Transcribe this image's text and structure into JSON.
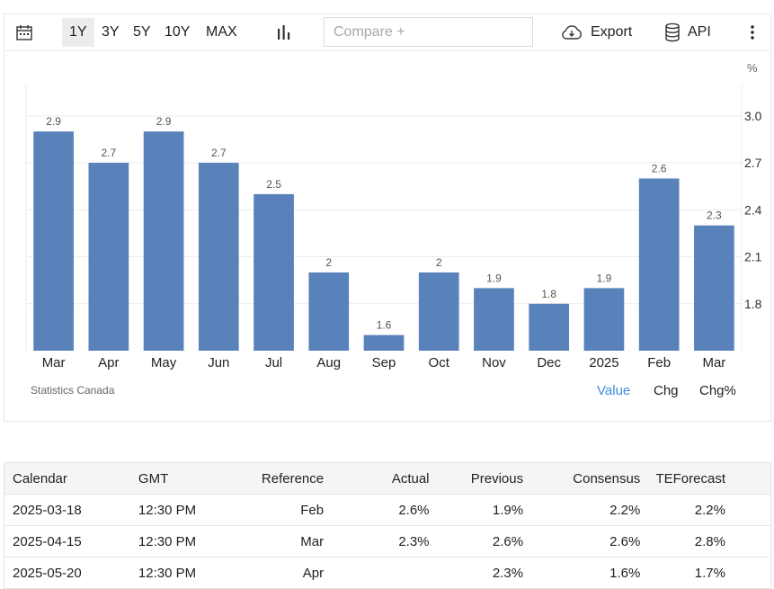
{
  "toolbar": {
    "ranges": [
      "1Y",
      "3Y",
      "5Y",
      "10Y",
      "MAX"
    ],
    "active_range": "1Y",
    "compare_placeholder": "Compare +",
    "export_label": "Export",
    "api_label": "API",
    "icons": {
      "calendar": "calendar-icon",
      "chart_type": "bar-chart-icon",
      "export": "cloud-download-icon",
      "api": "database-icon",
      "more": "more-vertical-icon"
    }
  },
  "chart_data": {
    "type": "bar",
    "unit": "%",
    "categories": [
      "Mar",
      "Apr",
      "May",
      "Jun",
      "Jul",
      "Aug",
      "Sep",
      "Oct",
      "Nov",
      "Dec",
      "2025",
      "Feb",
      "Mar"
    ],
    "values": [
      2.9,
      2.7,
      2.9,
      2.7,
      2.5,
      2,
      1.6,
      2,
      1.9,
      1.8,
      1.9,
      2.6,
      2.3
    ],
    "data_labels": [
      "2.9",
      "2.7",
      "2.9",
      "2.7",
      "2.5",
      "2",
      "1.6",
      "2",
      "1.9",
      "1.8",
      "1.9",
      "2.6",
      "2.3"
    ],
    "y_ticks": [
      "3.0",
      "2.7",
      "2.4",
      "2.1",
      "1.8"
    ],
    "y_tick_values": [
      3.0,
      2.7,
      2.4,
      2.1,
      1.8
    ],
    "ylim": [
      1.5,
      3.2
    ],
    "y_axis_side": "right",
    "grid": true,
    "bar_color": "#5a82ba",
    "title": "",
    "xlabel": "",
    "ylabel": ""
  },
  "source": "Statistics Canada",
  "modes": [
    "Value",
    "Chg",
    "Chg%"
  ],
  "active_mode": "Value",
  "accent_color": "#3d8ede",
  "table": {
    "headers": [
      "Calendar",
      "GMT",
      "Reference",
      "Actual",
      "Previous",
      "Consensus",
      "TEForecast"
    ],
    "rows": [
      [
        "2025-03-18",
        "12:30 PM",
        "Feb",
        "2.6%",
        "1.9%",
        "2.2%",
        "2.2%"
      ],
      [
        "2025-04-15",
        "12:30 PM",
        "Mar",
        "2.3%",
        "2.6%",
        "2.6%",
        "2.8%"
      ],
      [
        "2025-05-20",
        "12:30 PM",
        "Apr",
        "",
        "2.3%",
        "1.6%",
        "1.7%"
      ]
    ]
  }
}
